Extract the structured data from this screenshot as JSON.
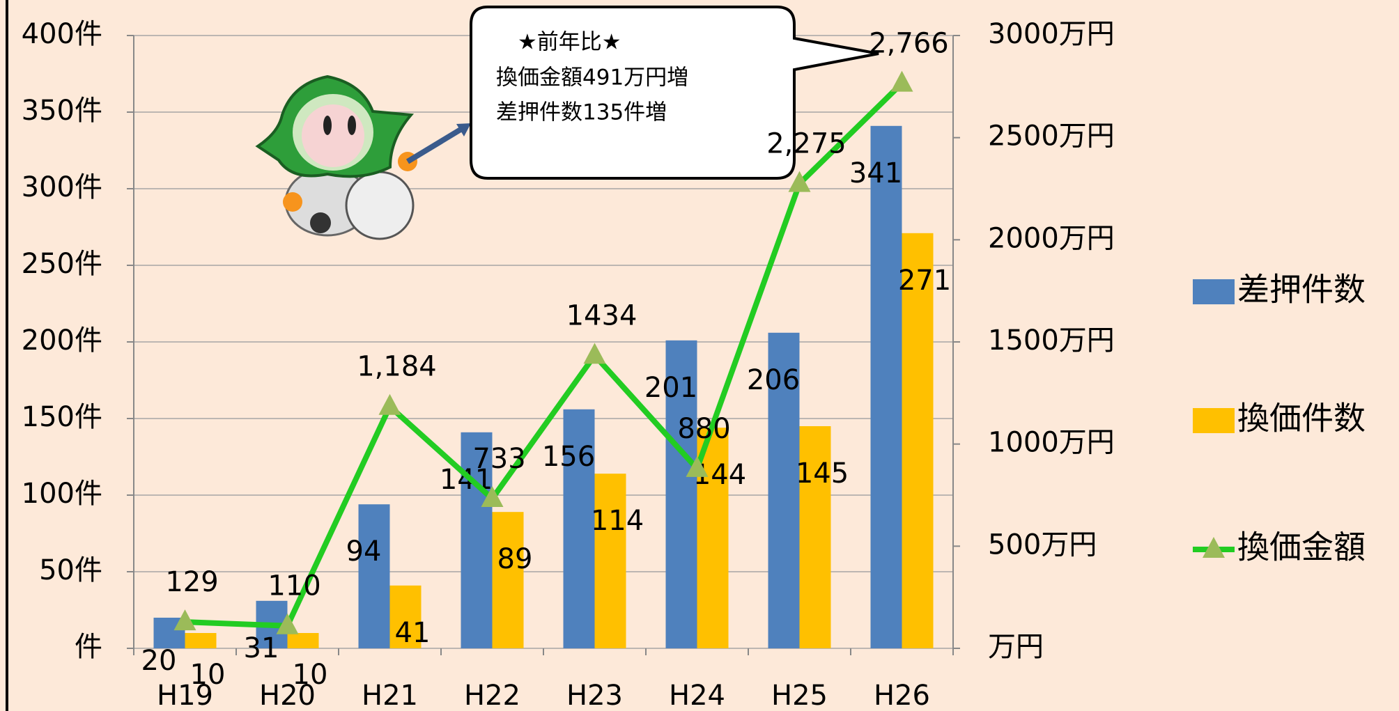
{
  "chart_data": {
    "type": "bar",
    "categories": [
      "H19",
      "H20",
      "H21",
      "H22",
      "H23",
      "H24",
      "H25",
      "H26"
    ],
    "series": [
      {
        "name": "差押件数",
        "color": "#4f81bd",
        "values": [
          20,
          31,
          94,
          141,
          156,
          201,
          206,
          341
        ]
      },
      {
        "name": "換価件数",
        "color": "#ffc000",
        "values": [
          10,
          10,
          41,
          89,
          114,
          144,
          145,
          271
        ]
      },
      {
        "name": "換価金額",
        "color": "#22cc22",
        "type": "line",
        "axis": "y2",
        "marker_color": "#9bbb59",
        "values": [
          129,
          110,
          1184,
          733,
          1434,
          880,
          2275,
          2766
        ],
        "value_labels": [
          "129",
          "110",
          "1,184",
          "733",
          "1434",
          "880",
          "2,275",
          "2,766"
        ]
      }
    ],
    "ylim": [
      0,
      400
    ],
    "yticks": [
      {
        "value": 0,
        "label": "件"
      },
      {
        "value": 50,
        "label": "50件"
      },
      {
        "value": 100,
        "label": "100件"
      },
      {
        "value": 150,
        "label": "150件"
      },
      {
        "value": 200,
        "label": "200件"
      },
      {
        "value": 250,
        "label": "250件"
      },
      {
        "value": 300,
        "label": "300件"
      },
      {
        "value": 350,
        "label": "350件"
      },
      {
        "value": 400,
        "label": "400件"
      }
    ],
    "y2lim": [
      0,
      3000
    ],
    "y2ticks": [
      {
        "value": 0,
        "label": "万円"
      },
      {
        "value": 500,
        "label": "500万円"
      },
      {
        "value": 1000,
        "label": "1000万円"
      },
      {
        "value": 1500,
        "label": "1500万円"
      },
      {
        "value": 2000,
        "label": "2000万円"
      },
      {
        "value": 2500,
        "label": "2500万円"
      },
      {
        "value": 3000,
        "label": "3000万円"
      }
    ],
    "grid": true,
    "legend": "right",
    "annotations": [
      "★前年比★",
      "換価金額491万円増",
      "差押件数135件増"
    ]
  }
}
